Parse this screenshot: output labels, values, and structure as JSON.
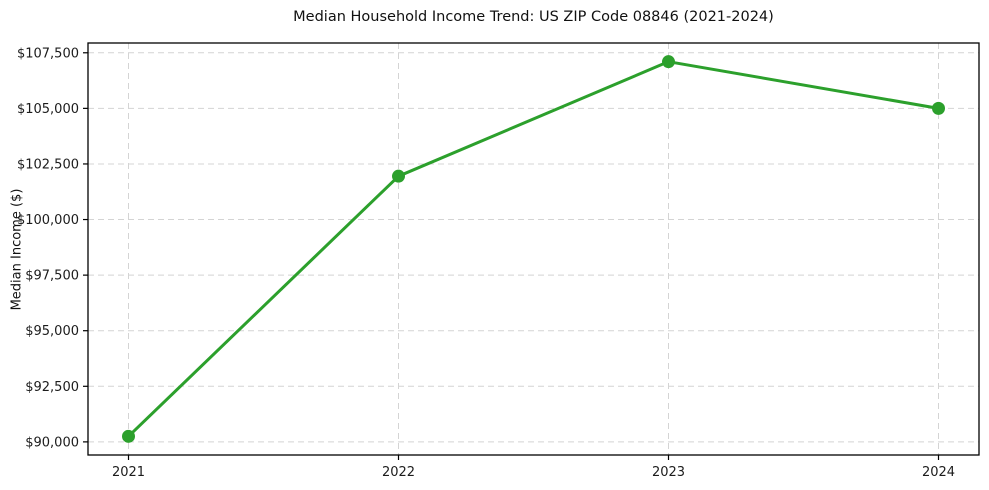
{
  "chart_data": {
    "type": "line",
    "title": "Median Household Income Trend: US ZIP Code 08846 (2021-2024)",
    "xlabel": "",
    "ylabel": "Median Income ($)",
    "x": [
      "2021",
      "2022",
      "2023",
      "2024"
    ],
    "values": [
      90250,
      101950,
      107100,
      105000
    ],
    "series": [
      {
        "name": "Median Household Income",
        "values": [
          90250,
          101950,
          107100,
          105000
        ]
      }
    ],
    "xtick_labels": [
      "2021",
      "2022",
      "2023",
      "2024"
    ],
    "yticks": [
      90000,
      92500,
      95000,
      97500,
      100000,
      102500,
      105000,
      107500
    ],
    "ytick_labels": [
      "$90,000",
      "$92,500",
      "$95,000",
      "$97,500",
      "$100,000",
      "$102,500",
      "$105,000",
      "$107,500"
    ],
    "ylim": [
      89410,
      107940
    ],
    "grid": true,
    "grid_style": "dashed",
    "legend": "none",
    "style": {
      "line_color": "#2ca02c",
      "marker_color": "#2ca02c",
      "grid_color": "#d4d4d4",
      "axis_color": "#000000",
      "text_color": "#1c1c1c",
      "background_color": "#ffffff",
      "line_width": 3,
      "marker_radius": 6.5
    }
  }
}
